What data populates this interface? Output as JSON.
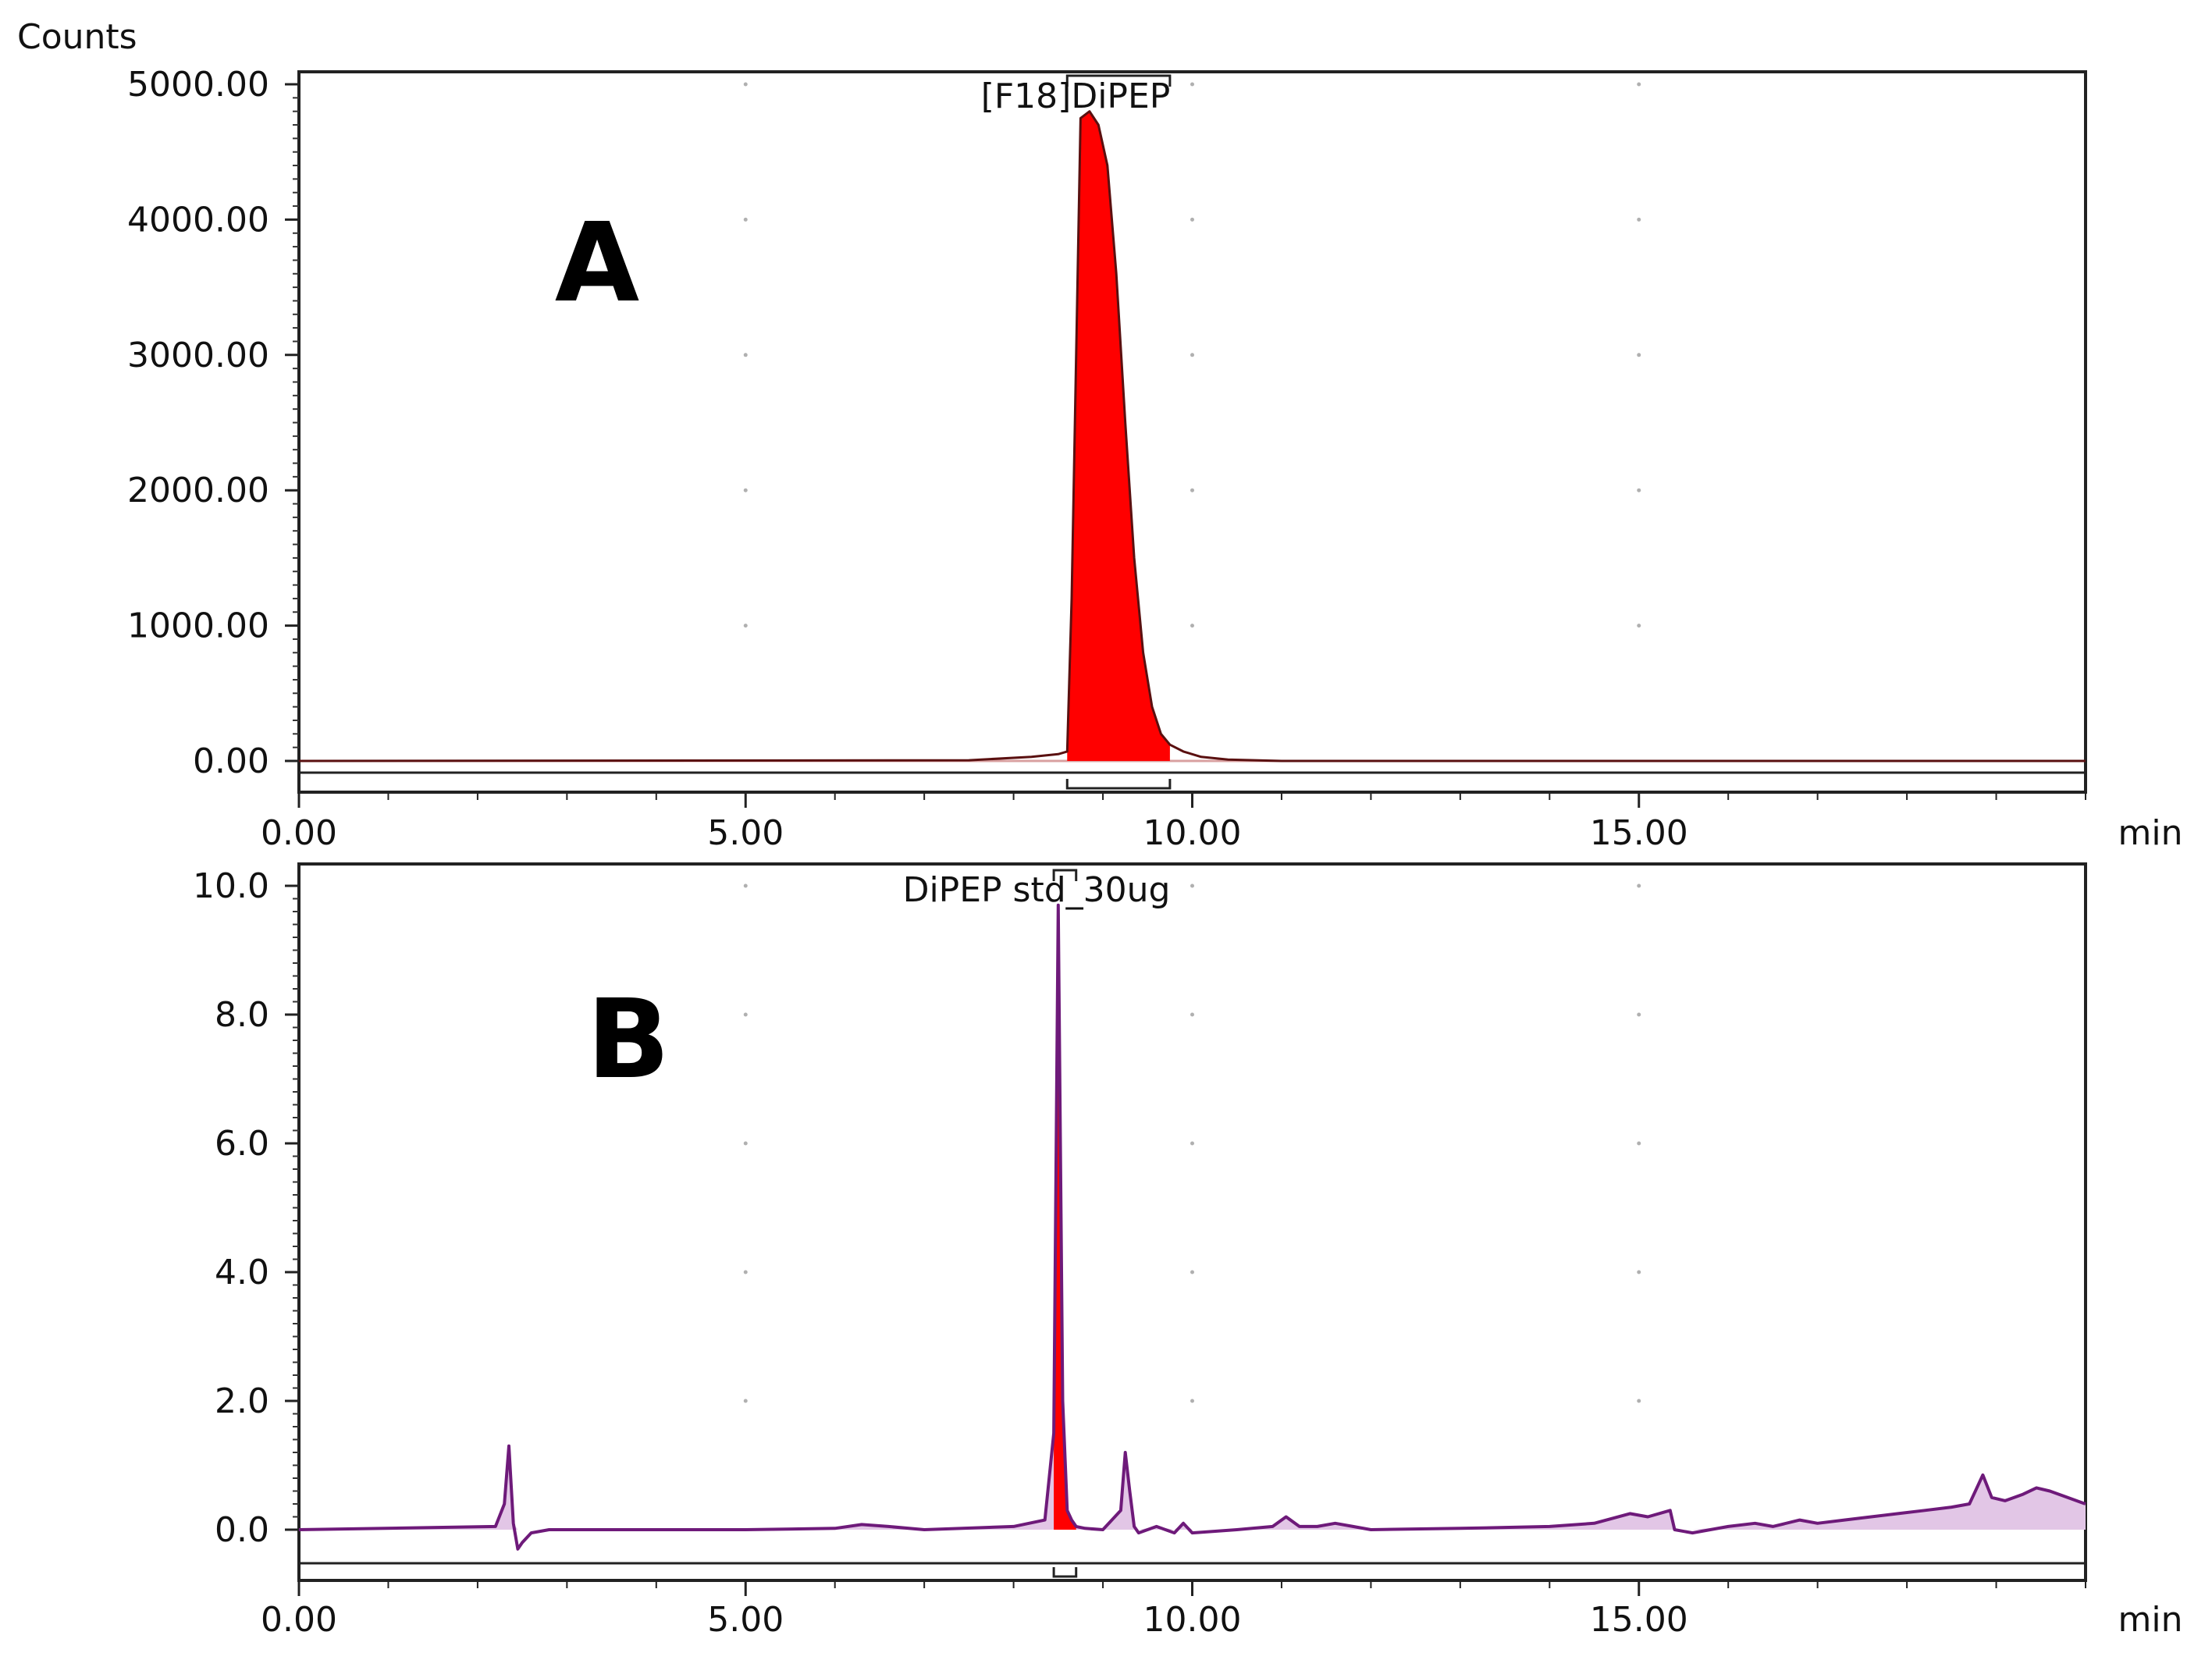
{
  "chart_data": [
    {
      "type": "line",
      "panel_label": "A",
      "ylabel": "Counts",
      "xlabel": "min",
      "xlim": [
        0,
        20
      ],
      "ylim": [
        -100,
        5100
      ],
      "x_ticks": [
        0,
        5,
        10,
        15
      ],
      "x_tick_labels": [
        "0.00",
        "5.00",
        "10.00",
        "15.00"
      ],
      "y_ticks": [
        0,
        1000,
        2000,
        3000,
        4000,
        5000
      ],
      "y_tick_labels": [
        "0.00",
        "1000.00",
        "2000.00",
        "3000.00",
        "4000.00",
        "5000.00"
      ],
      "grid": "dotted",
      "colors": {
        "trace": "#5a1010",
        "peak_fill": "#ff0000",
        "baseline": "#d9a0a0"
      },
      "peak": {
        "label": "[F18]DiPEP",
        "start": 8.6,
        "end": 9.75
      },
      "series": [
        {
          "x": [
            0,
            7.5,
            8.2,
            8.5,
            8.6,
            8.65,
            8.75,
            8.85,
            8.95,
            9.05,
            9.15,
            9.25,
            9.35,
            9.45,
            9.55,
            9.65,
            9.75,
            9.9,
            10.1,
            10.4,
            11,
            13,
            16,
            20
          ],
          "y": [
            0,
            5,
            30,
            50,
            70,
            1200,
            4750,
            4800,
            4700,
            4400,
            3600,
            2500,
            1500,
            800,
            400,
            200,
            120,
            70,
            30,
            10,
            0,
            0,
            0,
            0
          ]
        }
      ]
    },
    {
      "type": "line",
      "panel_label": "B",
      "xlabel": "min",
      "xlim": [
        0,
        20
      ],
      "ylim": [
        -0.7,
        10.2
      ],
      "x_ticks": [
        0,
        5,
        10,
        15
      ],
      "x_tick_labels": [
        "0.00",
        "5.00",
        "10.00",
        "15.00"
      ],
      "y_ticks": [
        0,
        2,
        4,
        6,
        8,
        10
      ],
      "y_tick_labels": [
        "0.0",
        "2.0",
        "4.0",
        "6.0",
        "8.0",
        "10.0"
      ],
      "grid": "dotted",
      "colors": {
        "trace": "#6e1a7a",
        "peak_fill": "#ff0000",
        "baseline_fill": "#e2c6e6"
      },
      "peak": {
        "label": "DiPEP std_30ug",
        "start": 8.45,
        "end": 8.7
      },
      "series": [
        {
          "x": [
            0,
            2.2,
            2.3,
            2.35,
            2.4,
            2.45,
            2.5,
            2.6,
            2.8,
            4,
            5,
            6,
            6.3,
            6.6,
            7,
            8,
            8.35,
            8.45,
            8.5,
            8.55,
            8.6,
            8.65,
            8.7,
            8.8,
            9,
            9.2,
            9.25,
            9.3,
            9.35,
            9.4,
            9.6,
            9.8,
            9.9,
            10,
            10.5,
            10.9,
            11.05,
            11.2,
            11.4,
            11.6,
            11.8,
            12,
            13,
            14,
            14.5,
            14.9,
            15.1,
            15.35,
            15.4,
            15.6,
            16,
            16.3,
            16.5,
            16.8,
            17,
            17.3,
            17.6,
            17.9,
            18.2,
            18.5,
            18.7,
            18.85,
            18.95,
            19.1,
            19.3,
            19.45,
            19.6,
            19.8,
            20
          ],
          "y": [
            0,
            0.05,
            0.4,
            1.3,
            0.1,
            -0.3,
            -0.2,
            -0.05,
            0,
            0,
            0,
            0.02,
            0.08,
            0.05,
            0,
            0.05,
            0.15,
            1.5,
            9.7,
            2.0,
            0.3,
            0.15,
            0.05,
            0.02,
            0.0,
            0.3,
            1.2,
            0.6,
            0.05,
            -0.05,
            0.05,
            -0.05,
            0.1,
            -0.05,
            0.0,
            0.05,
            0.2,
            0.05,
            0.05,
            0.1,
            0.05,
            0.0,
            0.02,
            0.05,
            0.1,
            0.25,
            0.2,
            0.3,
            0.0,
            -0.05,
            0.05,
            0.1,
            0.05,
            0.15,
            0.1,
            0.15,
            0.2,
            0.25,
            0.3,
            0.35,
            0.4,
            0.85,
            0.5,
            0.45,
            0.55,
            0.65,
            0.6,
            0.5,
            0.4
          ]
        }
      ]
    }
  ]
}
